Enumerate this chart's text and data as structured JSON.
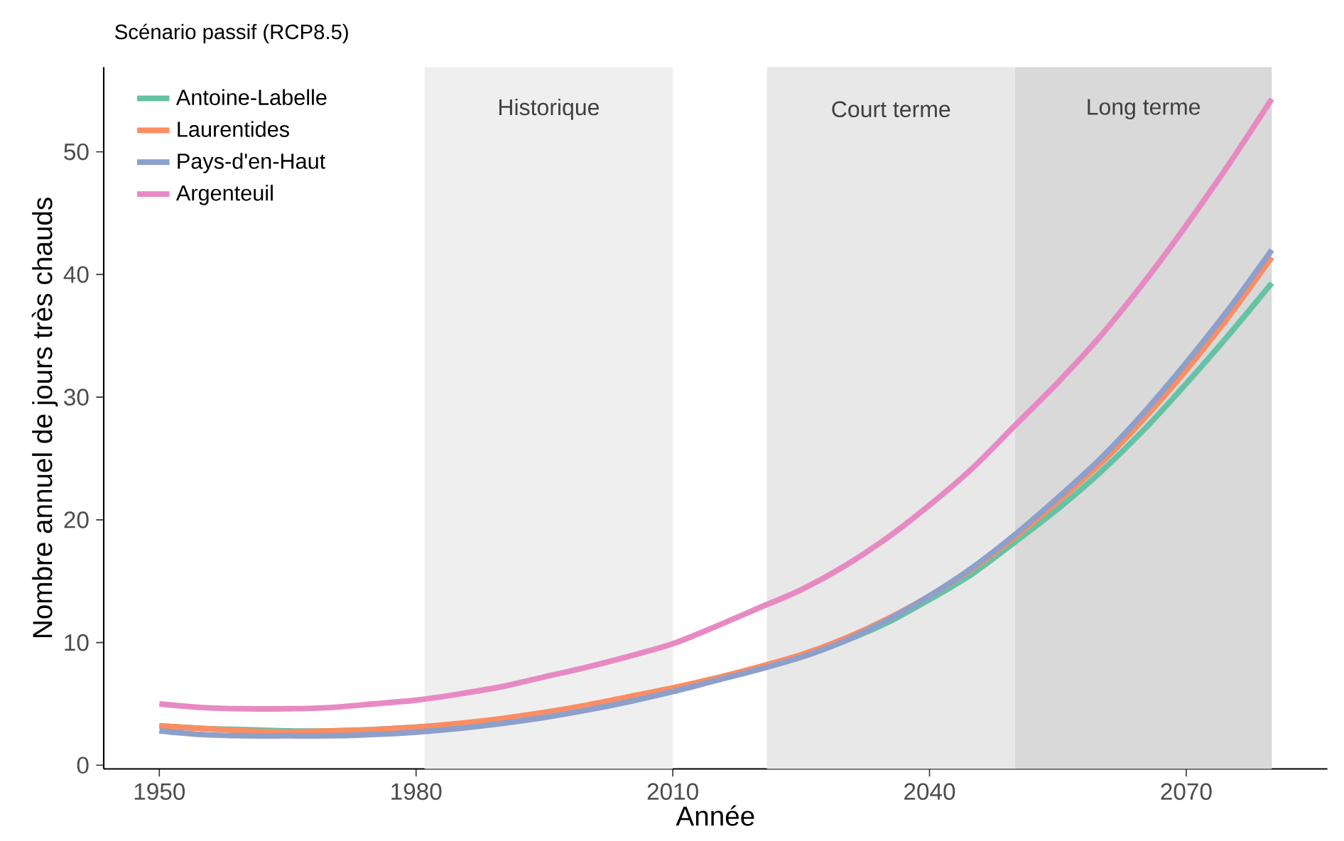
{
  "chart_data": {
    "type": "line",
    "title": "Scénario passif (RCP8.5)",
    "xlabel": "Année",
    "ylabel": "Nombre annuel de jours très chauds",
    "x": [
      1950,
      1955,
      1960,
      1965,
      1970,
      1975,
      1980,
      1985,
      1990,
      1995,
      2000,
      2005,
      2010,
      2015,
      2020,
      2025,
      2030,
      2035,
      2040,
      2045,
      2050,
      2055,
      2060,
      2065,
      2070,
      2075,
      2080
    ],
    "series": [
      {
        "name": "Antoine-Labelle",
        "color": "#66c2a5",
        "values": [
          3.2,
          3.0,
          2.9,
          2.8,
          2.8,
          2.9,
          3.1,
          3.3,
          3.7,
          4.2,
          4.8,
          5.5,
          6.2,
          7.0,
          7.9,
          8.9,
          10.1,
          11.6,
          13.5,
          15.6,
          18.2,
          20.9,
          23.9,
          27.3,
          31.1,
          35.1,
          39.3
        ]
      },
      {
        "name": "Laurentides",
        "color": "#fc8d62",
        "values": [
          3.2,
          3.0,
          2.8,
          2.7,
          2.8,
          2.9,
          3.1,
          3.4,
          3.8,
          4.3,
          4.9,
          5.6,
          6.3,
          7.1,
          8.0,
          9.0,
          10.3,
          11.9,
          13.8,
          16.0,
          18.6,
          21.5,
          24.6,
          28.2,
          32.2,
          36.6,
          41.4
        ]
      },
      {
        "name": "Pays-d'en-Haut",
        "color": "#8da0cb",
        "values": [
          2.8,
          2.5,
          2.4,
          2.4,
          2.4,
          2.5,
          2.7,
          3.0,
          3.4,
          3.9,
          4.5,
          5.2,
          6.0,
          6.9,
          7.8,
          8.8,
          10.1,
          11.8,
          13.8,
          16.1,
          18.8,
          21.8,
          25.0,
          28.7,
          32.8,
          37.2,
          42.0
        ]
      },
      {
        "name": "Argenteuil",
        "color": "#e78ac3",
        "values": [
          5.0,
          4.7,
          4.6,
          4.6,
          4.7,
          5.0,
          5.3,
          5.8,
          6.4,
          7.2,
          8.0,
          8.9,
          9.9,
          11.3,
          12.8,
          14.3,
          16.2,
          18.5,
          21.2,
          24.2,
          27.7,
          31.2,
          35.0,
          39.3,
          44.0,
          49.0,
          54.3
        ]
      }
    ],
    "xlim": [
      1943.5,
      2086.5
    ],
    "ylim": [
      -0.3,
      56.9
    ],
    "xticks": [
      1950,
      1980,
      2010,
      2040,
      2070
    ],
    "yticks": [
      0,
      10,
      20,
      30,
      40,
      50
    ],
    "bands": [
      {
        "axis": "x",
        "from": 1981,
        "to": 2010,
        "label": "Historique",
        "color": "#efefef"
      },
      {
        "axis": "x",
        "from": 2021,
        "to": 2050,
        "label": "Court terme",
        "color": "#e8e8e8"
      },
      {
        "axis": "x",
        "from": 2050,
        "to": 2080,
        "label": "Long terme",
        "color": "#d9d9d9"
      }
    ],
    "legend": "top left",
    "grid": false,
    "marker": "none",
    "line_style": "solid"
  }
}
